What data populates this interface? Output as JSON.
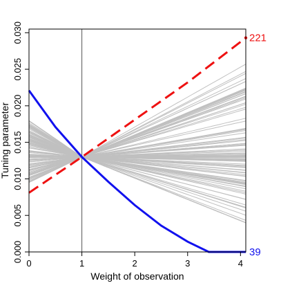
{
  "chart_data": {
    "type": "line",
    "title": "",
    "xlabel": "Weight of observation",
    "ylabel": "Tuning parameter",
    "xlim": [
      0,
      4.1
    ],
    "ylim": [
      0,
      0.0305
    ],
    "x_ticks": [
      {
        "value": 0,
        "label": "0"
      },
      {
        "value": 1,
        "label": "1"
      },
      {
        "value": 2,
        "label": "2"
      },
      {
        "value": 3,
        "label": "3"
      },
      {
        "value": 4,
        "label": "4"
      }
    ],
    "y_ticks": [
      {
        "value": 0,
        "label": "0.000"
      },
      {
        "value": 0.005,
        "label": "0.005"
      },
      {
        "value": 0.01,
        "label": "0.010"
      },
      {
        "value": 0.015,
        "label": "0.015"
      },
      {
        "value": 0.02,
        "label": "0.020"
      },
      {
        "value": 0.025,
        "label": "0.025"
      },
      {
        "value": 0.03,
        "label": "0.030"
      }
    ],
    "reference_line": {
      "x": 1,
      "color": "#555555"
    },
    "grid": false,
    "legend": "none",
    "pivot": {
      "x": 1,
      "y": 0.013
    },
    "highlighted_series": [
      {
        "label": "221",
        "color": "#ee1111",
        "style": "dashed",
        "x": [
          0,
          1,
          2,
          3,
          4.1
        ],
        "values": [
          0.0081,
          0.013,
          0.0181,
          0.0232,
          0.0293
        ]
      },
      {
        "label": "39",
        "color": "#1111ee",
        "style": "solid",
        "x": [
          0,
          0.5,
          1,
          1.5,
          2,
          2.5,
          3,
          3.4,
          4.1
        ],
        "values": [
          0.0221,
          0.0171,
          0.013,
          0.0096,
          0.0064,
          0.0036,
          0.0014,
          0.0,
          0.0
        ]
      }
    ],
    "background_series": {
      "color": "#c0c0c0",
      "description_count": 130,
      "start_range": [
        0.0095,
        0.018
      ],
      "end_range": [
        0.004,
        0.026
      ],
      "x_end": 4.1
    }
  }
}
